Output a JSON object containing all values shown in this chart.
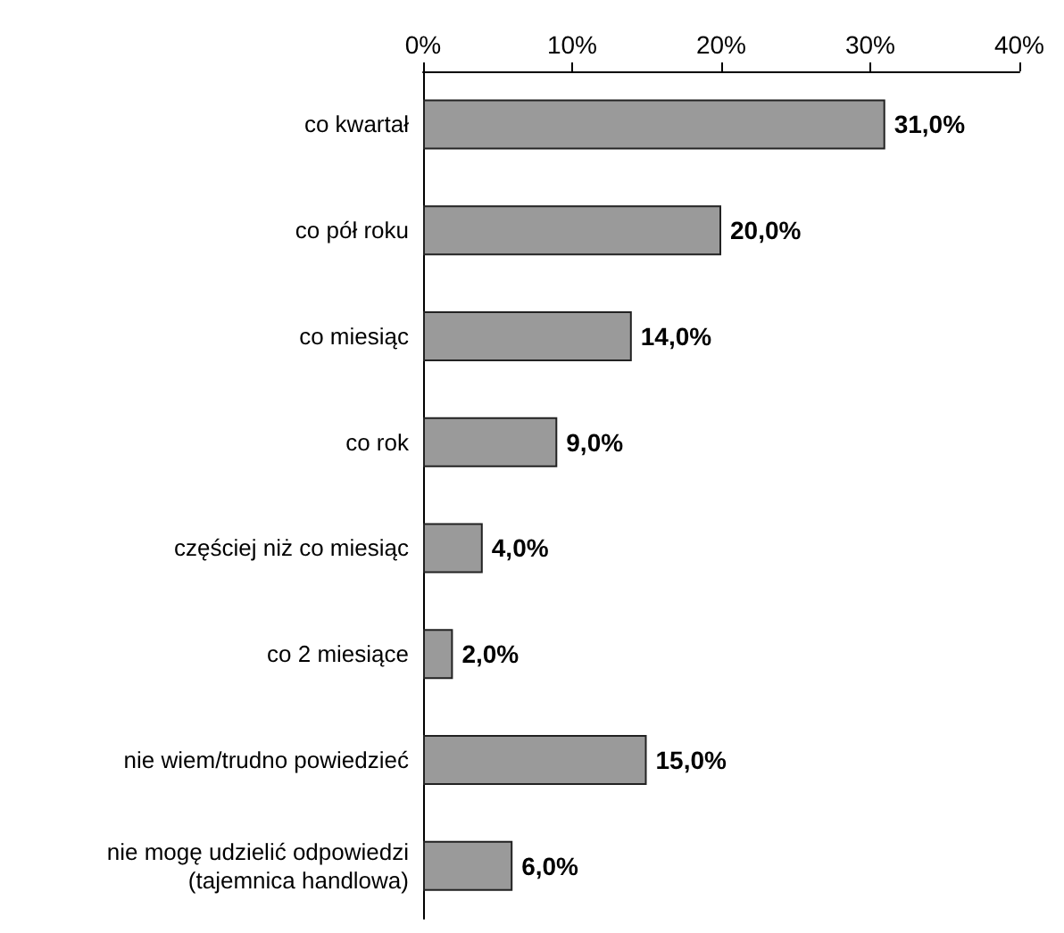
{
  "chart_data": {
    "type": "bar",
    "orientation": "horizontal",
    "categories": [
      "co kwartał",
      "co pół roku",
      "co miesiąc",
      "co rok",
      "częściej niż co miesiąc",
      "co 2 miesiące",
      "nie wiem/trudno powiedzieć",
      "nie mogę udzielić odpowiedzi\n(tajemnica handlowa)"
    ],
    "values": [
      31,
      20,
      14,
      9,
      4,
      2,
      15,
      6
    ],
    "value_labels": [
      "31,0%",
      "20,0%",
      "14,0%",
      "9,0%",
      "4,0%",
      "2,0%",
      "15,0%",
      "6,0%"
    ],
    "color": "#9a9a9a",
    "xlim": [
      0,
      40
    ],
    "xticks": [
      {
        "value": 0,
        "label": "0%"
      },
      {
        "value": 10,
        "label": "10%"
      },
      {
        "value": 20,
        "label": "20%"
      },
      {
        "value": 30,
        "label": "30%"
      },
      {
        "value": 40,
        "label": "40%"
      }
    ],
    "grid": false
  }
}
